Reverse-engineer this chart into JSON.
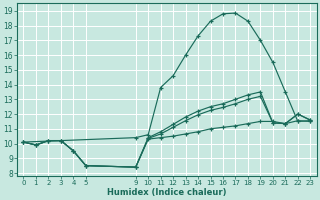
{
  "xlabel": "Humidex (Indice chaleur)",
  "bg_color": "#c8e8e0",
  "grid_color": "#ffffff",
  "line_color": "#1a6b5a",
  "xlim": [
    -0.5,
    23.5
  ],
  "ylim": [
    7.8,
    19.5
  ],
  "yticks": [
    8,
    9,
    10,
    11,
    12,
    13,
    14,
    15,
    16,
    17,
    18,
    19
  ],
  "xticks": [
    0,
    1,
    2,
    3,
    4,
    5,
    9,
    10,
    11,
    12,
    13,
    14,
    15,
    16,
    17,
    18,
    19,
    20,
    21,
    22,
    23
  ],
  "xtick_labels": [
    "0",
    "1",
    "2",
    "3",
    "4",
    "5",
    "9",
    "10",
    "11",
    "12",
    "13",
    "14",
    "15",
    "16",
    "17",
    "18",
    "19",
    "20",
    "21",
    "22",
    "23"
  ],
  "series": [
    {
      "x": [
        0,
        1,
        2,
        3,
        4,
        5,
        9,
        10,
        11,
        12,
        13,
        14,
        15,
        16,
        17,
        18,
        19,
        20,
        21,
        22,
        23
      ],
      "y": [
        10.1,
        9.9,
        10.2,
        10.2,
        9.5,
        8.5,
        8.4,
        10.3,
        10.4,
        10.5,
        10.65,
        10.8,
        11.0,
        11.1,
        11.2,
        11.35,
        11.5,
        11.5,
        11.35,
        11.55,
        11.5
      ]
    },
    {
      "x": [
        0,
        1,
        2,
        3,
        4,
        5,
        9,
        10,
        11,
        12,
        13,
        14,
        15,
        16,
        17,
        18,
        19,
        20,
        21,
        22,
        23
      ],
      "y": [
        10.1,
        9.9,
        10.2,
        10.2,
        9.5,
        8.5,
        8.4,
        10.4,
        10.8,
        11.3,
        11.8,
        12.2,
        12.5,
        12.7,
        13.0,
        13.3,
        13.5,
        11.4,
        11.35,
        12.0,
        11.6
      ]
    },
    {
      "x": [
        0,
        9,
        10,
        11,
        12,
        13,
        14,
        15,
        16,
        17,
        18,
        19,
        20,
        21,
        22,
        23
      ],
      "y": [
        10.1,
        10.4,
        10.6,
        13.8,
        14.6,
        16.0,
        17.3,
        18.3,
        18.8,
        18.85,
        18.3,
        17.0,
        15.5,
        13.5,
        11.5,
        11.55
      ]
    },
    {
      "x": [
        0,
        1,
        2,
        3,
        4,
        5,
        9,
        10,
        11,
        12,
        13,
        14,
        15,
        16,
        17,
        18,
        19,
        20,
        21,
        22,
        23
      ],
      "y": [
        10.1,
        9.9,
        10.2,
        10.2,
        9.5,
        8.5,
        8.4,
        10.35,
        10.65,
        11.1,
        11.55,
        11.95,
        12.25,
        12.45,
        12.7,
        13.0,
        13.2,
        11.4,
        11.35,
        12.0,
        11.58
      ]
    }
  ]
}
